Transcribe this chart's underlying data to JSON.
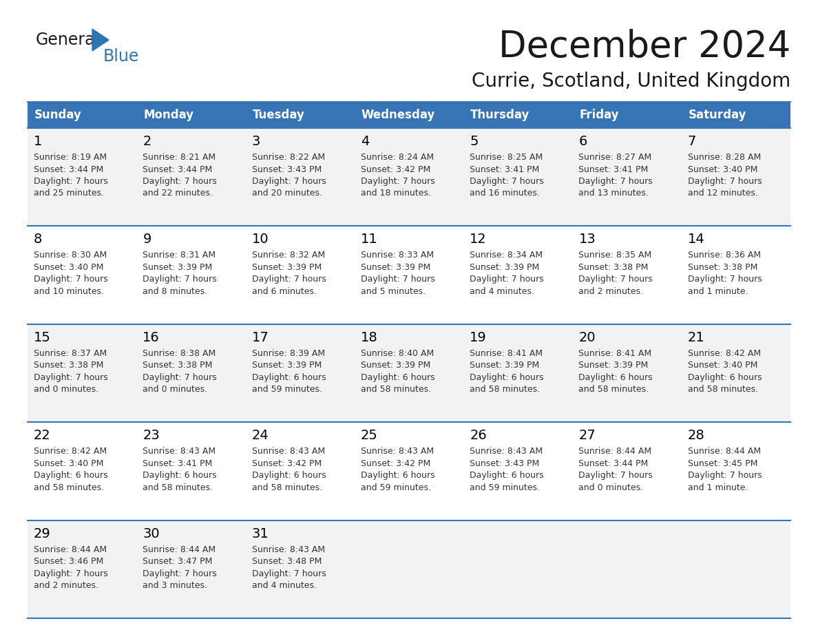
{
  "title": "December 2024",
  "subtitle": "Currie, Scotland, United Kingdom",
  "header_color": "#3674B5",
  "header_text_color": "#FFFFFF",
  "days_of_week": [
    "Sunday",
    "Monday",
    "Tuesday",
    "Wednesday",
    "Thursday",
    "Friday",
    "Saturday"
  ],
  "row_bg_colors": [
    "#F2F2F2",
    "#FFFFFF"
  ],
  "divider_color": "#3674B5",
  "text_color": "#000000",
  "cell_text_color": "#333333",
  "calendar_data": [
    [
      {
        "day": 1,
        "sunrise": "8:19 AM",
        "sunset": "3:44 PM",
        "daylight_line1": "Daylight: 7 hours",
        "daylight_line2": "and 25 minutes."
      },
      {
        "day": 2,
        "sunrise": "8:21 AM",
        "sunset": "3:44 PM",
        "daylight_line1": "Daylight: 7 hours",
        "daylight_line2": "and 22 minutes."
      },
      {
        "day": 3,
        "sunrise": "8:22 AM",
        "sunset": "3:43 PM",
        "daylight_line1": "Daylight: 7 hours",
        "daylight_line2": "and 20 minutes."
      },
      {
        "day": 4,
        "sunrise": "8:24 AM",
        "sunset": "3:42 PM",
        "daylight_line1": "Daylight: 7 hours",
        "daylight_line2": "and 18 minutes."
      },
      {
        "day": 5,
        "sunrise": "8:25 AM",
        "sunset": "3:41 PM",
        "daylight_line1": "Daylight: 7 hours",
        "daylight_line2": "and 16 minutes."
      },
      {
        "day": 6,
        "sunrise": "8:27 AM",
        "sunset": "3:41 PM",
        "daylight_line1": "Daylight: 7 hours",
        "daylight_line2": "and 13 minutes."
      },
      {
        "day": 7,
        "sunrise": "8:28 AM",
        "sunset": "3:40 PM",
        "daylight_line1": "Daylight: 7 hours",
        "daylight_line2": "and 12 minutes."
      }
    ],
    [
      {
        "day": 8,
        "sunrise": "8:30 AM",
        "sunset": "3:40 PM",
        "daylight_line1": "Daylight: 7 hours",
        "daylight_line2": "and 10 minutes."
      },
      {
        "day": 9,
        "sunrise": "8:31 AM",
        "sunset": "3:39 PM",
        "daylight_line1": "Daylight: 7 hours",
        "daylight_line2": "and 8 minutes."
      },
      {
        "day": 10,
        "sunrise": "8:32 AM",
        "sunset": "3:39 PM",
        "daylight_line1": "Daylight: 7 hours",
        "daylight_line2": "and 6 minutes."
      },
      {
        "day": 11,
        "sunrise": "8:33 AM",
        "sunset": "3:39 PM",
        "daylight_line1": "Daylight: 7 hours",
        "daylight_line2": "and 5 minutes."
      },
      {
        "day": 12,
        "sunrise": "8:34 AM",
        "sunset": "3:39 PM",
        "daylight_line1": "Daylight: 7 hours",
        "daylight_line2": "and 4 minutes."
      },
      {
        "day": 13,
        "sunrise": "8:35 AM",
        "sunset": "3:38 PM",
        "daylight_line1": "Daylight: 7 hours",
        "daylight_line2": "and 2 minutes."
      },
      {
        "day": 14,
        "sunrise": "8:36 AM",
        "sunset": "3:38 PM",
        "daylight_line1": "Daylight: 7 hours",
        "daylight_line2": "and 1 minute."
      }
    ],
    [
      {
        "day": 15,
        "sunrise": "8:37 AM",
        "sunset": "3:38 PM",
        "daylight_line1": "Daylight: 7 hours",
        "daylight_line2": "and 0 minutes."
      },
      {
        "day": 16,
        "sunrise": "8:38 AM",
        "sunset": "3:38 PM",
        "daylight_line1": "Daylight: 7 hours",
        "daylight_line2": "and 0 minutes."
      },
      {
        "day": 17,
        "sunrise": "8:39 AM",
        "sunset": "3:39 PM",
        "daylight_line1": "Daylight: 6 hours",
        "daylight_line2": "and 59 minutes."
      },
      {
        "day": 18,
        "sunrise": "8:40 AM",
        "sunset": "3:39 PM",
        "daylight_line1": "Daylight: 6 hours",
        "daylight_line2": "and 58 minutes."
      },
      {
        "day": 19,
        "sunrise": "8:41 AM",
        "sunset": "3:39 PM",
        "daylight_line1": "Daylight: 6 hours",
        "daylight_line2": "and 58 minutes."
      },
      {
        "day": 20,
        "sunrise": "8:41 AM",
        "sunset": "3:39 PM",
        "daylight_line1": "Daylight: 6 hours",
        "daylight_line2": "and 58 minutes."
      },
      {
        "day": 21,
        "sunrise": "8:42 AM",
        "sunset": "3:40 PM",
        "daylight_line1": "Daylight: 6 hours",
        "daylight_line2": "and 58 minutes."
      }
    ],
    [
      {
        "day": 22,
        "sunrise": "8:42 AM",
        "sunset": "3:40 PM",
        "daylight_line1": "Daylight: 6 hours",
        "daylight_line2": "and 58 minutes."
      },
      {
        "day": 23,
        "sunrise": "8:43 AM",
        "sunset": "3:41 PM",
        "daylight_line1": "Daylight: 6 hours",
        "daylight_line2": "and 58 minutes."
      },
      {
        "day": 24,
        "sunrise": "8:43 AM",
        "sunset": "3:42 PM",
        "daylight_line1": "Daylight: 6 hours",
        "daylight_line2": "and 58 minutes."
      },
      {
        "day": 25,
        "sunrise": "8:43 AM",
        "sunset": "3:42 PM",
        "daylight_line1": "Daylight: 6 hours",
        "daylight_line2": "and 59 minutes."
      },
      {
        "day": 26,
        "sunrise": "8:43 AM",
        "sunset": "3:43 PM",
        "daylight_line1": "Daylight: 6 hours",
        "daylight_line2": "and 59 minutes."
      },
      {
        "day": 27,
        "sunrise": "8:44 AM",
        "sunset": "3:44 PM",
        "daylight_line1": "Daylight: 7 hours",
        "daylight_line2": "and 0 minutes."
      },
      {
        "day": 28,
        "sunrise": "8:44 AM",
        "sunset": "3:45 PM",
        "daylight_line1": "Daylight: 7 hours",
        "daylight_line2": "and 1 minute."
      }
    ],
    [
      {
        "day": 29,
        "sunrise": "8:44 AM",
        "sunset": "3:46 PM",
        "daylight_line1": "Daylight: 7 hours",
        "daylight_line2": "and 2 minutes."
      },
      {
        "day": 30,
        "sunrise": "8:44 AM",
        "sunset": "3:47 PM",
        "daylight_line1": "Daylight: 7 hours",
        "daylight_line2": "and 3 minutes."
      },
      {
        "day": 31,
        "sunrise": "8:43 AM",
        "sunset": "3:48 PM",
        "daylight_line1": "Daylight: 7 hours",
        "daylight_line2": "and 4 minutes."
      },
      null,
      null,
      null,
      null
    ]
  ]
}
